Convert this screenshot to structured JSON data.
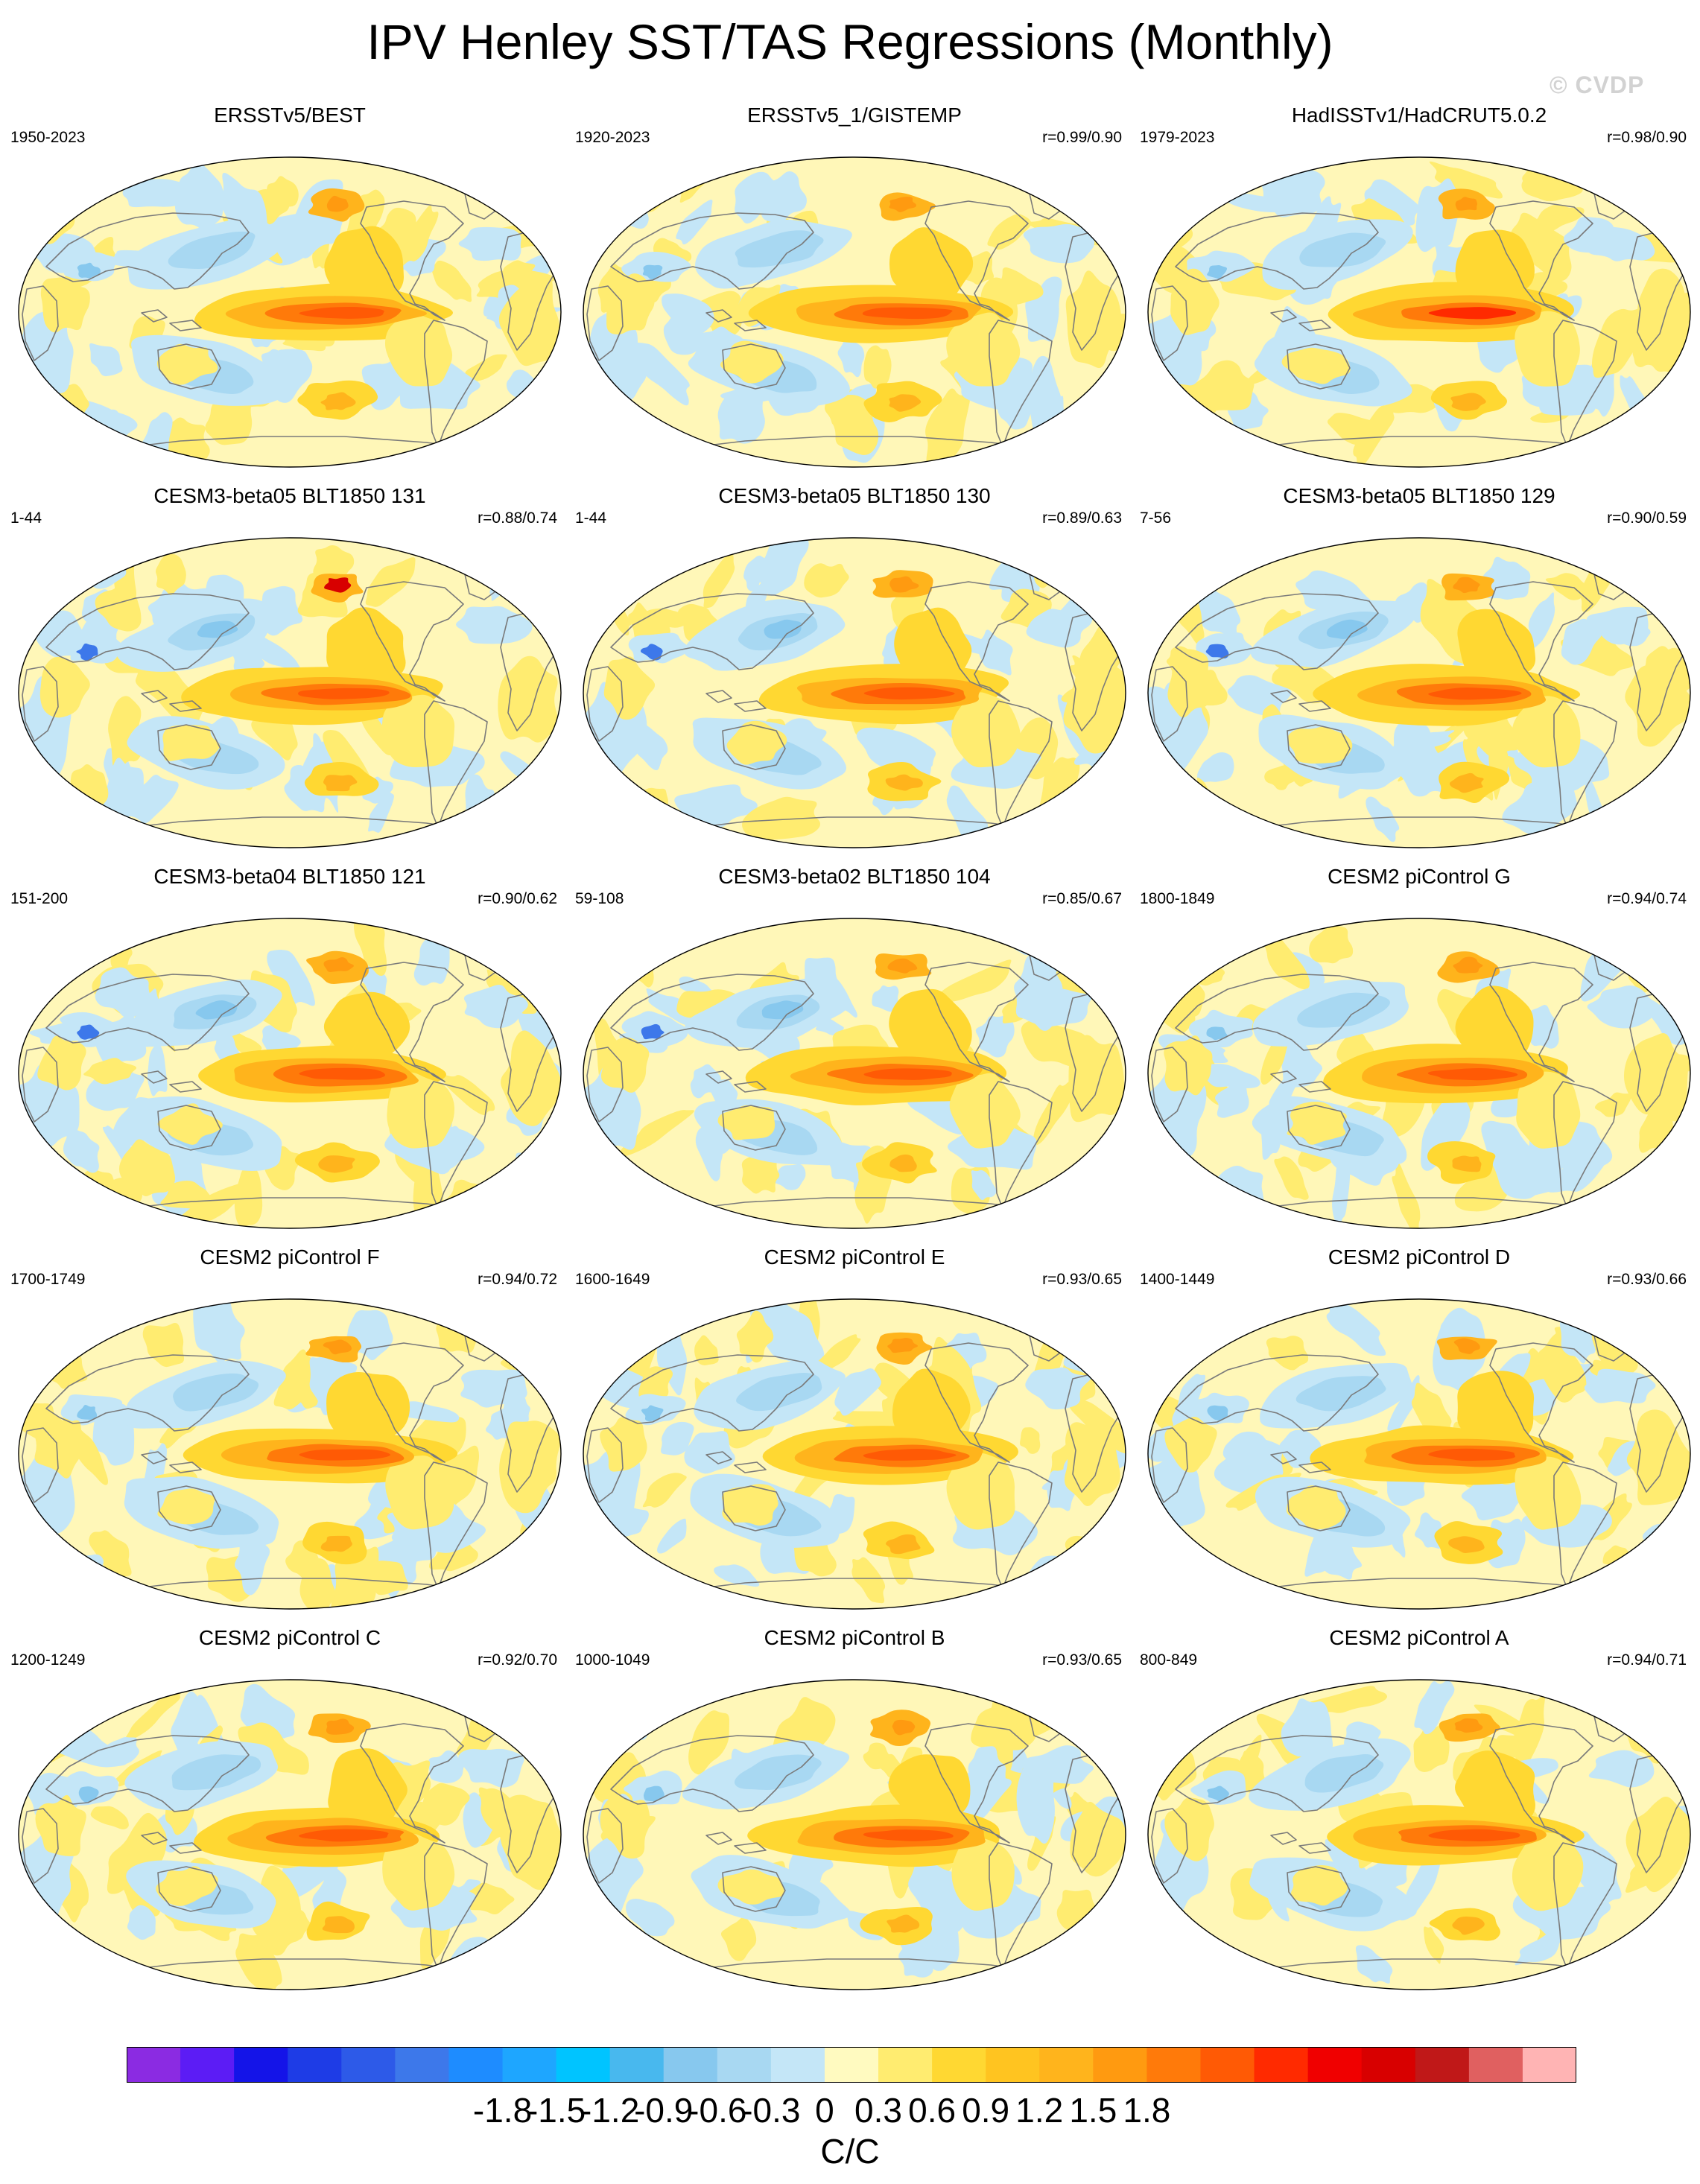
{
  "title": "IPV Henley SST/TAS Regressions (Monthly)",
  "watermark": "© CVDP",
  "units_label": "C/C",
  "chart_data": {
    "type": "heatmap",
    "title": "IPV Henley SST/TAS Regressions (Monthly)",
    "projection": "Robinson global map, Pacific-centered",
    "units": "C/C",
    "colorbar": {
      "levels": [
        -1.8,
        -1.5,
        -1.2,
        -0.9,
        -0.6,
        -0.3,
        0,
        0.3,
        0.6,
        0.9,
        1.2,
        1.5,
        1.8
      ],
      "tick_labels": [
        "-1.8",
        "-1.5",
        "-1.2",
        "-0.9",
        "-0.6",
        "-0.3",
        "0",
        "0.3",
        "0.6",
        "0.9",
        "1.2",
        "1.5",
        "1.8"
      ],
      "colors": [
        "#8b2be2",
        "#5c1cf5",
        "#1414e8",
        "#1e3ce6",
        "#2d5ae8",
        "#3d78ea",
        "#1e8cff",
        "#1ea6ff",
        "#00c4ff",
        "#48b8ee",
        "#87c8ee",
        "#a8d8f2",
        "#c4e6f7",
        "#fffac0",
        "#ffec70",
        "#ffd832",
        "#ffc420",
        "#ffb41c",
        "#ff9a10",
        "#ff7a0a",
        "#ff5a05",
        "#ff2a00",
        "#f00000",
        "#d80000",
        "#c01818",
        "#e06060",
        "#ffb4b4"
      ]
    },
    "panels": [
      {
        "title": "ERSSTv5/BEST",
        "years": "1950-2023",
        "corr": ""
      },
      {
        "title": "ERSSTv5_1/GISTEMP",
        "years": "1920-2023",
        "corr": "r=0.99/0.90"
      },
      {
        "title": "HadISSTv1/HadCRUT5.0.2",
        "years": "1979-2023",
        "corr": "r=0.98/0.90"
      },
      {
        "title": "CESM3-beta05 BLT1850 131",
        "years": "1-44",
        "corr": "r=0.88/0.74"
      },
      {
        "title": "CESM3-beta05 BLT1850 130",
        "years": "1-44",
        "corr": "r=0.89/0.63"
      },
      {
        "title": "CESM3-beta05 BLT1850 129",
        "years": "7-56",
        "corr": "r=0.90/0.59"
      },
      {
        "title": "CESM3-beta04 BLT1850 121",
        "years": "151-200",
        "corr": "r=0.90/0.62"
      },
      {
        "title": "CESM3-beta02 BLT1850 104",
        "years": "59-108",
        "corr": "r=0.85/0.67"
      },
      {
        "title": "CESM2 piControl G",
        "years": "1800-1849",
        "corr": "r=0.94/0.74"
      },
      {
        "title": "CESM2 piControl F",
        "years": "1700-1749",
        "corr": "r=0.94/0.72"
      },
      {
        "title": "CESM2 piControl E",
        "years": "1600-1649",
        "corr": "r=0.93/0.65"
      },
      {
        "title": "CESM2 piControl D",
        "years": "1400-1449",
        "corr": "r=0.93/0.66"
      },
      {
        "title": "CESM2 piControl C",
        "years": "1200-1249",
        "corr": "r=0.92/0.70"
      },
      {
        "title": "CESM2 piControl B",
        "years": "1000-1049",
        "corr": "r=0.93/0.65"
      },
      {
        "title": "CESM2 piControl A",
        "years": "800-849",
        "corr": "r=0.94/0.71"
      }
    ]
  }
}
